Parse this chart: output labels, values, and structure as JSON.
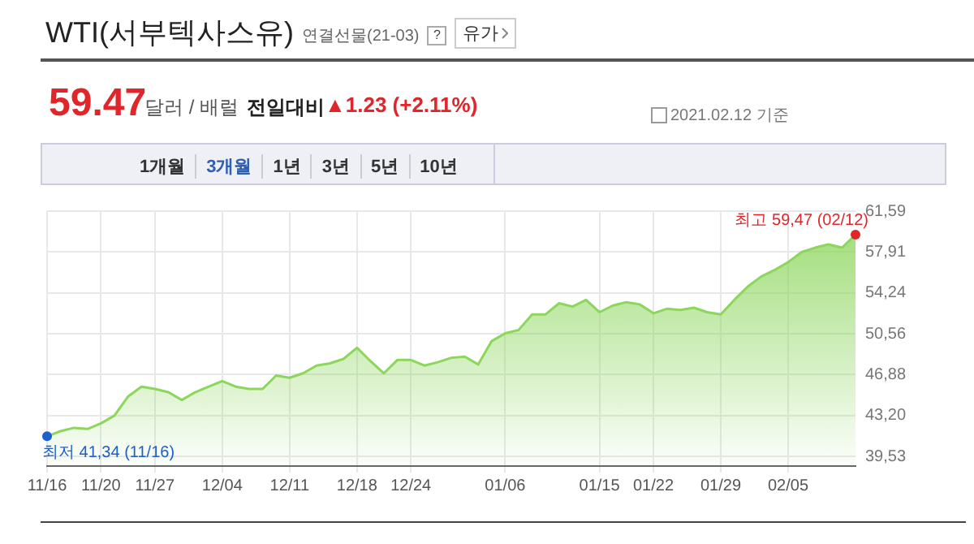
{
  "chart_data": {
    "type": "area",
    "title": "WTI(서부텍사스유)",
    "subtitle": "연결선물(21-03)",
    "categories": [
      "11/16",
      null,
      null,
      null,
      "11/20",
      null,
      null,
      null,
      "11/27",
      null,
      null,
      null,
      null,
      "12/04",
      null,
      null,
      null,
      null,
      "12/11",
      null,
      null,
      null,
      null,
      "12/18",
      null,
      null,
      null,
      "12/24",
      null,
      null,
      null,
      null,
      null,
      null,
      "01/06",
      null,
      null,
      null,
      null,
      null,
      null,
      "01/15",
      null,
      null,
      null,
      "01/22",
      null,
      null,
      null,
      null,
      "01/29",
      null,
      null,
      null,
      null,
      "02/05",
      null,
      null,
      null,
      null,
      null
    ],
    "series": [
      {
        "color": "#8cd65c",
        "values": [
          41.34,
          41.8,
          42.1,
          42.0,
          42.5,
          43.2,
          44.9,
          45.8,
          45.6,
          45.3,
          44.6,
          45.3,
          45.8,
          46.3,
          45.8,
          45.6,
          45.6,
          46.8,
          46.6,
          47.0,
          47.7,
          47.9,
          48.3,
          49.3,
          48.1,
          47.0,
          48.2,
          48.2,
          47.7,
          48.0,
          48.4,
          48.5,
          47.8,
          49.9,
          50.6,
          50.9,
          52.3,
          52.3,
          53.3,
          53.0,
          53.6,
          52.5,
          53.1,
          53.4,
          53.2,
          52.4,
          52.8,
          52.7,
          52.9,
          52.5,
          52.3,
          53.6,
          54.8,
          55.7,
          56.3,
          57.0,
          57.9,
          58.3,
          58.6,
          58.3,
          59.47
        ]
      }
    ],
    "ylim": [
      38.66,
      61.59
    ],
    "yticks": [
      {
        "value": 39.53,
        "label": "39,53"
      },
      {
        "value": 43.2,
        "label": "43,20"
      },
      {
        "value": 46.88,
        "label": "46,88"
      },
      {
        "value": 50.56,
        "label": "50,56"
      },
      {
        "value": 54.24,
        "label": "54,24"
      },
      {
        "value": 57.91,
        "label": "57,91"
      },
      {
        "value": 61.59,
        "label": "61,59"
      }
    ],
    "grid": true,
    "annotations": [
      "유가",
      "59.47",
      "달러 / 배럴",
      "전일대비",
      "▲1.23 (+2.11%)",
      "2021.02.12 기준",
      "1개월",
      "3개월",
      "1년",
      "3년",
      "5년",
      "10년",
      "?",
      {
        "text": "최저 41,34 (11/16)",
        "x": "11/16",
        "y": 41.34
      },
      "최고 59,47 (02/12)"
    ]
  }
}
